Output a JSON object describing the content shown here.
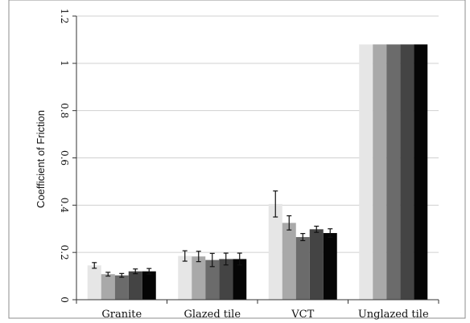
{
  "chart_data": {
    "type": "bar",
    "title": "",
    "xlabel": "",
    "ylabel": "Coefficient of Friction",
    "ylim": [
      0,
      1.2
    ],
    "yticks": [
      0,
      0.2,
      0.4,
      0.6,
      0.8,
      1,
      1.2
    ],
    "ytick_labels": [
      "0",
      "0.2",
      "0.4",
      "0.6",
      "0.8",
      "1",
      "1.2"
    ],
    "grid": true,
    "legend": "none",
    "categories": [
      "Granite",
      "Glazed tile",
      "VCT",
      "Unglazed tile"
    ],
    "series": [
      {
        "color": "#e6e6e6",
        "values": [
          0.145,
          0.185,
          0.405,
          1.08
        ],
        "errors": [
          0.012,
          0.022,
          0.055,
          0
        ]
      },
      {
        "color": "#a9a9a9",
        "values": [
          0.108,
          0.183,
          0.325,
          1.08
        ],
        "errors": [
          0.008,
          0.022,
          0.03,
          0
        ]
      },
      {
        "color": "#6b6b6b",
        "values": [
          0.103,
          0.168,
          0.265,
          1.08
        ],
        "errors": [
          0.008,
          0.028,
          0.015,
          0
        ]
      },
      {
        "color": "#444444",
        "values": [
          0.12,
          0.172,
          0.298,
          1.08
        ],
        "errors": [
          0.01,
          0.025,
          0.013,
          0
        ]
      },
      {
        "color": "#050505",
        "values": [
          0.12,
          0.172,
          0.282,
          1.08
        ],
        "errors": [
          0.012,
          0.025,
          0.018,
          0
        ]
      }
    ]
  }
}
